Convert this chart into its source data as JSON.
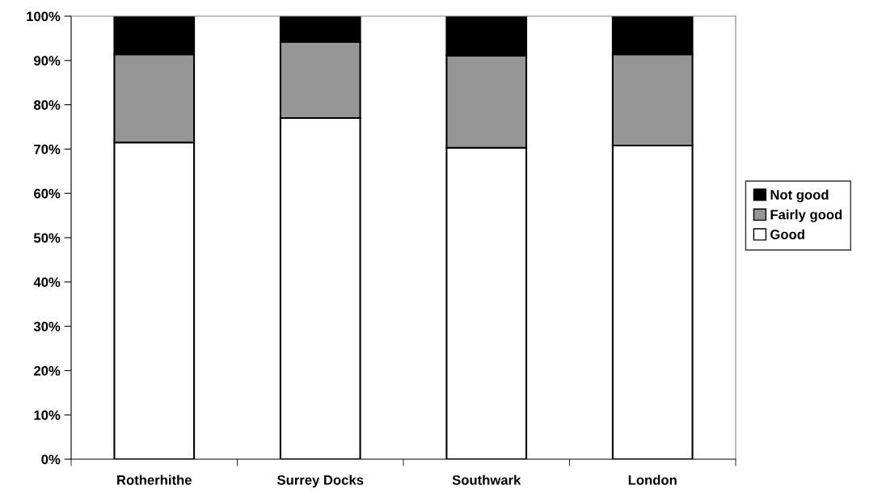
{
  "chart_data": {
    "type": "bar",
    "stacked": true,
    "categories": [
      "Rotherhithe",
      "Surrey Docks",
      "Southwark",
      "London"
    ],
    "series": [
      {
        "name": "Good",
        "color": "#ffffff",
        "values": [
          71.5,
          77.0,
          70.3,
          70.8
        ]
      },
      {
        "name": "Fairly good",
        "color": "#969696",
        "values": [
          19.9,
          17.2,
          20.8,
          20.6
        ]
      },
      {
        "name": "Not good",
        "color": "#000000",
        "values": [
          8.6,
          5.8,
          8.9,
          8.6
        ]
      }
    ],
    "ylim": [
      0,
      100
    ],
    "yticks": [
      {
        "value": 0,
        "label": "0%"
      },
      {
        "value": 10,
        "label": "10%"
      },
      {
        "value": 20,
        "label": "20%"
      },
      {
        "value": 30,
        "label": "30%"
      },
      {
        "value": 40,
        "label": "40%"
      },
      {
        "value": 50,
        "label": "50%"
      },
      {
        "value": 60,
        "label": "60%"
      },
      {
        "value": 70,
        "label": "70%"
      },
      {
        "value": 80,
        "label": "80%"
      },
      {
        "value": 90,
        "label": "90%"
      },
      {
        "value": 100,
        "label": "100%"
      }
    ],
    "grid": false,
    "legend": "right"
  }
}
